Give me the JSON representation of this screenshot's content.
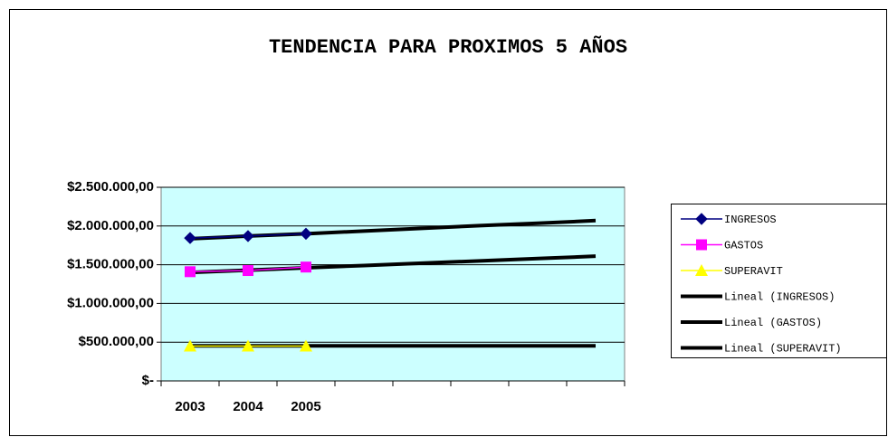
{
  "chart_data": {
    "type": "line",
    "title": "TENDENCIA PARA PROXIMOS 5 AÑOS",
    "categories": [
      "2003",
      "2004",
      "2005",
      null,
      null,
      null,
      null,
      null
    ],
    "series": [
      {
        "name": "INGRESOS",
        "color": "#000080",
        "marker": "diamond",
        "values": [
          1845000,
          1870000,
          1900000,
          null,
          null,
          null,
          null,
          null
        ]
      },
      {
        "name": "GASTOS",
        "color": "#ff00ff",
        "marker": "square",
        "values": [
          1410000,
          1425000,
          1470000,
          null,
          null,
          null,
          null,
          null
        ]
      },
      {
        "name": "SUPERAVIT",
        "color": "#ffff00",
        "marker": "triangle",
        "values": [
          450000,
          450000,
          450000,
          null,
          null,
          null,
          null,
          null
        ]
      },
      {
        "name": "Lineal (INGRESOS)",
        "color": "#000000",
        "values": [
          1835000,
          1870000,
          1900000,
          1935000,
          1970000,
          2005000,
          2035000,
          2070000
        ]
      },
      {
        "name": "Lineal (GASTOS)",
        "color": "#000000",
        "values": [
          1400000,
          1430000,
          1460000,
          1490000,
          1520000,
          1550000,
          1580000,
          1610000
        ]
      },
      {
        "name": "Lineal (SUPERAVIT)",
        "color": "#000000",
        "values": [
          452000,
          452000,
          452000,
          452000,
          452000,
          452000,
          452000,
          452000
        ]
      }
    ],
    "ylim": [
      0,
      2500000
    ],
    "yticks": [
      {
        "value": 0,
        "label": "$-"
      },
      {
        "value": 500000,
        "label": "$500.000,00"
      },
      {
        "value": 1000000,
        "label": "$1.000.000,00"
      },
      {
        "value": 1500000,
        "label": "$1.500.000,00"
      },
      {
        "value": 2000000,
        "label": "$2.000.000,00"
      },
      {
        "value": 2500000,
        "label": "$2.500.000,00"
      }
    ],
    "grid": true,
    "legend": "right",
    "plot_background": "#ccffff"
  }
}
